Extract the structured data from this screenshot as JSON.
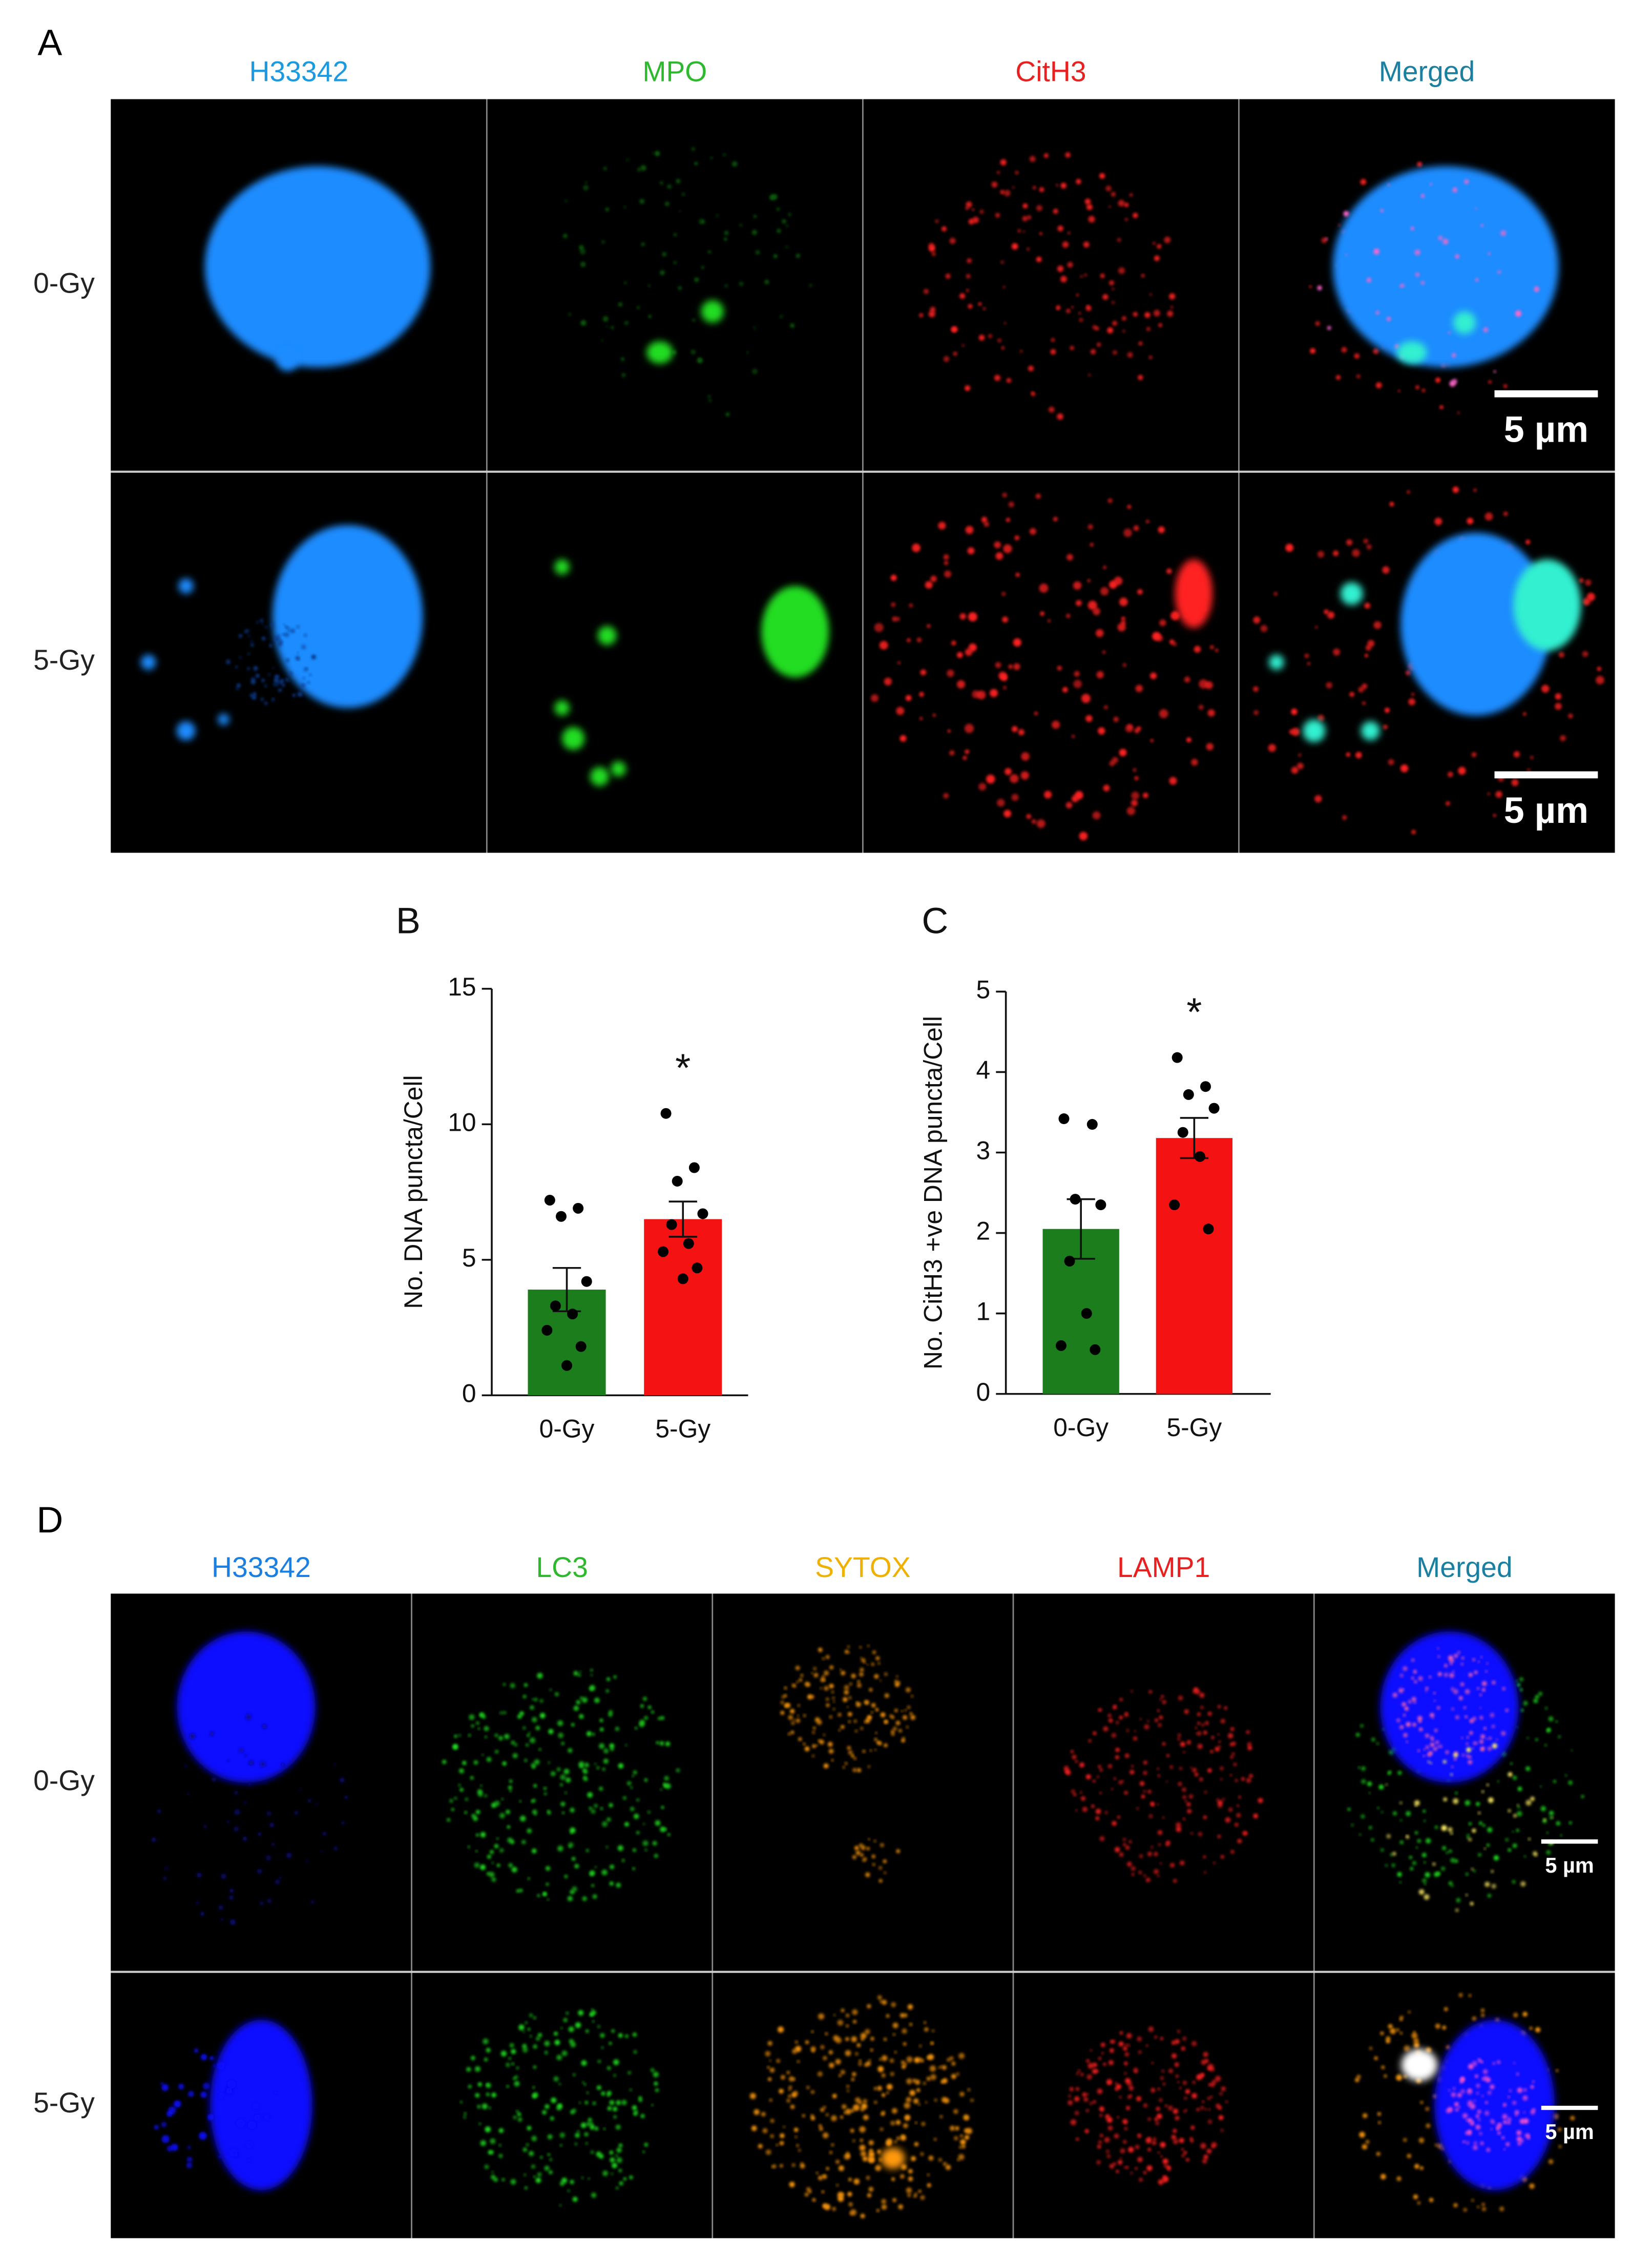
{
  "figure": {
    "panel_a": {
      "label": "A",
      "columns": [
        "H33342",
        "MPO",
        "CitH3",
        "Merged"
      ],
      "rows": [
        "0-Gy",
        "5-Gy"
      ],
      "scale_bar": "5 µm"
    },
    "panel_d": {
      "label": "D",
      "columns": [
        "H33342",
        "LC3",
        "SYTOX",
        "LAMP1",
        "Merged"
      ],
      "rows": [
        "0-Gy",
        "5-Gy"
      ],
      "scale_bar": "5 µm"
    }
  },
  "chart_data": [
    {
      "type": "bar",
      "panel_label": "B",
      "ylabel": "No. DNA puncta/Cell",
      "categories": [
        "0-Gy",
        "5-Gy"
      ],
      "values": [
        3.9,
        6.5
      ],
      "errors": [
        0.8,
        0.65
      ],
      "points": [
        [
          7.2,
          6.9,
          6.6,
          4.2,
          3.3,
          3.0,
          2.4,
          1.8,
          1.1
        ],
        [
          10.4,
          8.4,
          7.9,
          6.7,
          6.3,
          5.6,
          5.3,
          4.7,
          4.3
        ]
      ],
      "colors": [
        "#1b7d1b",
        "#f51212"
      ],
      "annotation": "*",
      "ylim": [
        0,
        15
      ],
      "yticks": [
        0,
        5,
        10,
        15
      ]
    },
    {
      "type": "bar",
      "panel_label": "C",
      "ylabel": "No. CitH3 +ve DNA puncta/Cell",
      "categories": [
        "0-Gy",
        "5-Gy"
      ],
      "values": [
        2.05,
        3.18
      ],
      "errors": [
        0.37,
        0.25
      ],
      "points": [
        [
          3.42,
          3.35,
          2.42,
          2.35,
          1.65,
          1.0,
          0.6,
          0.55
        ],
        [
          4.18,
          3.82,
          3.72,
          3.55,
          3.25,
          2.95,
          2.35,
          2.05
        ]
      ],
      "colors": [
        "#1b7d1b",
        "#f51212"
      ],
      "annotation": "*",
      "ylim": [
        0,
        5
      ],
      "yticks": [
        0,
        1,
        2,
        3,
        4,
        5
      ]
    }
  ]
}
